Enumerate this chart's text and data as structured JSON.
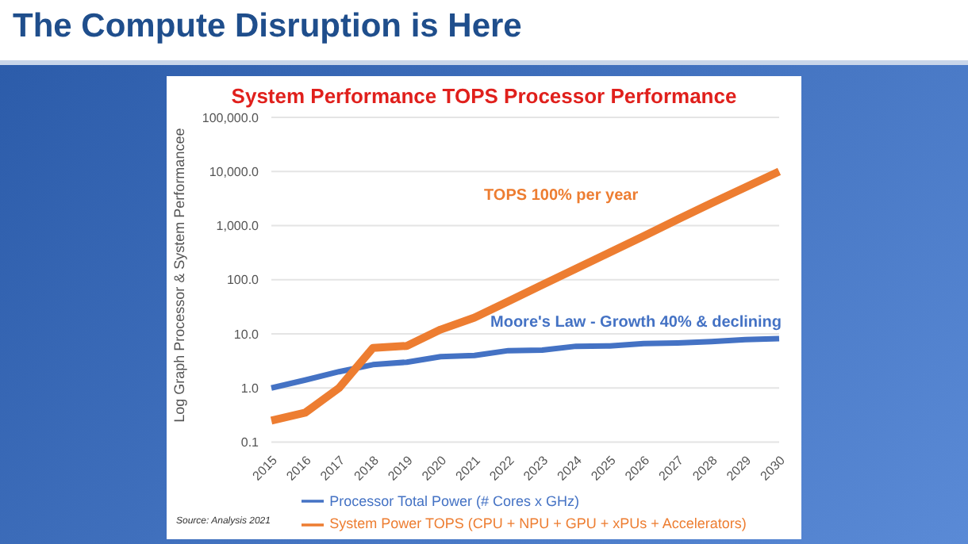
{
  "chart_data": {
    "type": "line",
    "title": "The Compute Disruption is Here",
    "subtitle": "System Performance TOPS Processor Performance",
    "ylabel": "Log Graph Processor & System Performancee",
    "categories": [
      "2015",
      "2016",
      "2017",
      "2018",
      "2019",
      "2020",
      "2021",
      "2022",
      "2023",
      "2024",
      "2025",
      "2026",
      "2027",
      "2028",
      "2029",
      "2030"
    ],
    "series": [
      {
        "name": "Processor Total Power (# Cores x GHz)",
        "color": "#4472c4",
        "values": [
          1.0,
          1.4,
          2.0,
          2.7,
          3.0,
          3.8,
          4.0,
          4.9,
          5.0,
          5.9,
          6.0,
          6.6,
          6.8,
          7.2,
          7.8,
          8.2
        ]
      },
      {
        "name": "System Power TOPS (CPU + NPU + GPU + xPUs + Accelerators)",
        "color": "#ed7d31",
        "values": [
          0.25,
          0.35,
          1.0,
          5.5,
          6.0,
          12,
          20,
          40,
          80,
          160,
          320,
          640,
          1300,
          2600,
          5100,
          10000
        ]
      }
    ],
    "log": "y",
    "ylim": [
      0.1,
      100000
    ],
    "yticks": [
      {
        "value": 0.1,
        "label": "0.1"
      },
      {
        "value": 1,
        "label": "1.0"
      },
      {
        "value": 10,
        "label": "10.0"
      },
      {
        "value": 100,
        "label": "100.0"
      },
      {
        "value": 1000,
        "label": "1,000.0"
      },
      {
        "value": 10000,
        "label": "10,000.0"
      },
      {
        "value": 100000,
        "label": "100,000.0"
      }
    ],
    "grid": "y",
    "legend": "bottom",
    "marker": "none",
    "line_style": "solid",
    "annotations": [
      "TOPS 100% per year",
      "Moore's Law - Growth 40% & declining",
      "Source: Analysis 2021"
    ]
  }
}
